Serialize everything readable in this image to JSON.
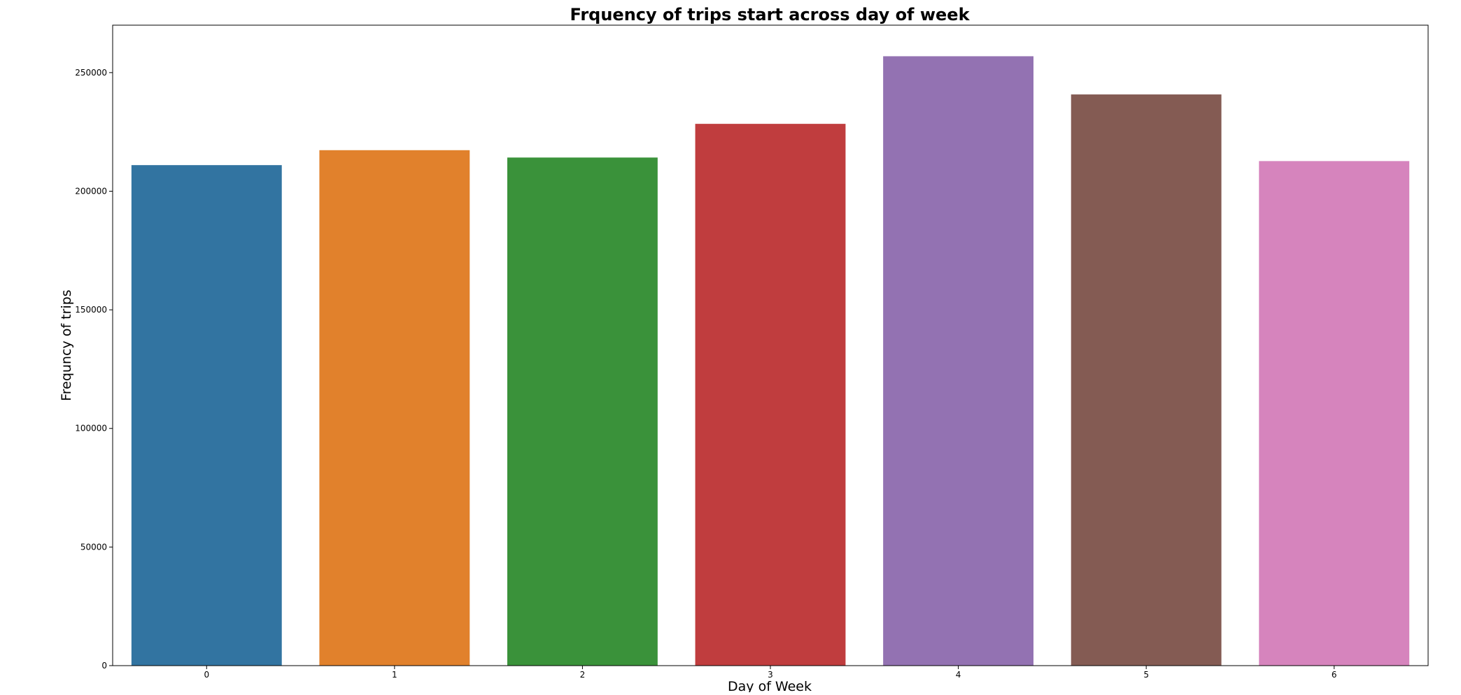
{
  "chart_data": {
    "type": "bar",
    "title": "Frquency of trips start across day of week",
    "xlabel": "Day of Week",
    "ylabel": "Frequncy of trips",
    "categories": [
      "0",
      "1",
      "2",
      "3",
      "4",
      "5",
      "6"
    ],
    "values": [
      211000,
      217300,
      214200,
      228400,
      256900,
      240800,
      212700
    ],
    "colors": [
      "#3274a1",
      "#e1812c",
      "#3a923a",
      "#c03d3e",
      "#9372b2",
      "#845b53",
      "#d684bd"
    ],
    "ylim": [
      0,
      270000
    ],
    "yticks": [
      0,
      50000,
      100000,
      150000,
      200000,
      250000
    ],
    "ytick_labels": [
      "0",
      "50000",
      "100000",
      "150000",
      "200000",
      "250000"
    ],
    "grid": false,
    "legend": "none"
  }
}
